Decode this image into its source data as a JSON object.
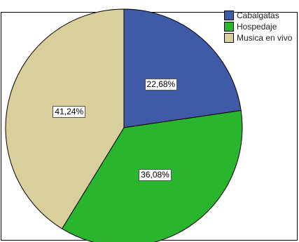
{
  "chart_data": {
    "type": "pie",
    "title": "",
    "categories": [
      "Cabalgatas",
      "Hospedaje",
      "Musica en vivo"
    ],
    "values": [
      22.68,
      36.08,
      41.24
    ],
    "value_labels": [
      "22,68%",
      "36,08%",
      "41,24%"
    ],
    "colors": [
      "#3f5aa7",
      "#2ab52f",
      "#d8cf9d"
    ],
    "legend_position": "top-right",
    "start_angle": "12 o'clock",
    "direction": "clockwise"
  }
}
